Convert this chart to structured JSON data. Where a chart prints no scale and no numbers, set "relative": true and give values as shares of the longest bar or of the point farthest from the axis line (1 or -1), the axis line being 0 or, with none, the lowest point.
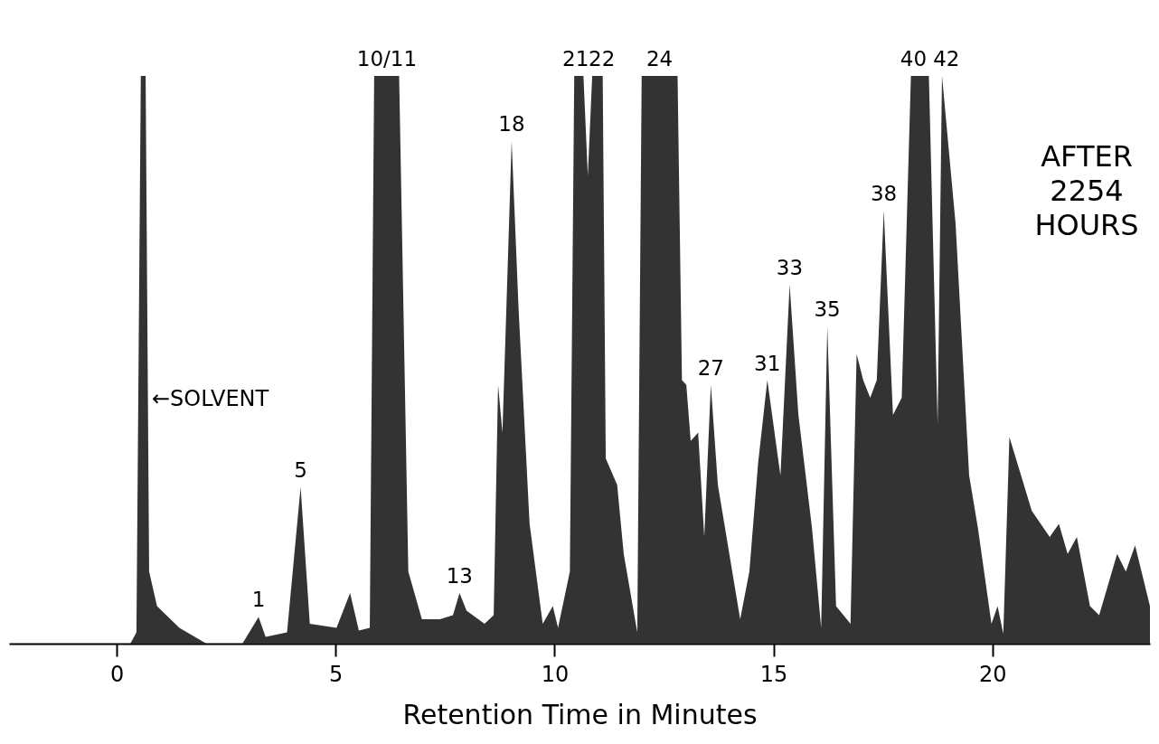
{
  "chart_data": {
    "type": "area",
    "relative": true,
    "xlabel": "Retention  Time  in  Minutes",
    "xlim": [
      -2.46,
      23.6
    ],
    "xticks": [
      0,
      5,
      10,
      15,
      20
    ],
    "grid": false,
    "x": [
      -2.46,
      0.31,
      0.45,
      0.55,
      0.66,
      0.74,
      0.92,
      1.43,
      2.05,
      2.87,
      3.24,
      3.4,
      3.89,
      4.2,
      4.41,
      5.02,
      5.33,
      5.53,
      5.78,
      5.88,
      6.45,
      6.66,
      6.97,
      7.38,
      7.68,
      7.83,
      7.99,
      8.4,
      8.61,
      8.71,
      8.81,
      9.02,
      9.18,
      9.43,
      9.73,
      9.96,
      10.08,
      10.35,
      10.45,
      10.66,
      10.76,
      10.86,
      11.1,
      11.17,
      11.43,
      11.58,
      11.89,
      11.99,
      12.81,
      12.91,
      13.01,
      13.11,
      13.28,
      13.42,
      13.57,
      13.73,
      14.24,
      14.45,
      14.65,
      14.86,
      15.16,
      15.37,
      15.57,
      15.88,
      16.09,
      16.23,
      16.43,
      16.76,
      16.9,
      17.05,
      17.21,
      17.36,
      17.52,
      17.73,
      17.93,
      18.14,
      18.55,
      18.75,
      18.85,
      19.16,
      19.47,
      19.67,
      19.98,
      20.12,
      20.25,
      20.39,
      20.9,
      21.31,
      21.52,
      21.72,
      21.93,
      22.23,
      22.44,
      22.85,
      23.05,
      23.26,
      23.6
    ],
    "series": [
      {
        "color": "#333333",
        "values": [
          0,
          0,
          0.02,
          1,
          1,
          0.127,
          0.066,
          0.028,
          0,
          0,
          0.047,
          0.012,
          0.02,
          0.276,
          0.035,
          0.028,
          0.089,
          0.023,
          0.028,
          1,
          1,
          0.127,
          0.043,
          0.043,
          0.05,
          0.089,
          0.058,
          0.035,
          0.05,
          0.456,
          0.372,
          0.885,
          0.587,
          0.211,
          0.035,
          0.066,
          0.028,
          0.127,
          1,
          1,
          0.824,
          1,
          1,
          0.326,
          0.28,
          0.158,
          0.02,
          1,
          1,
          0.464,
          0.456,
          0.357,
          0.372,
          0.188,
          0.456,
          0.28,
          0.043,
          0.127,
          0.318,
          0.464,
          0.296,
          0.632,
          0.403,
          0.204,
          0.028,
          0.559,
          0.066,
          0.035,
          0.51,
          0.464,
          0.433,
          0.464,
          0.763,
          0.403,
          0.433,
          1,
          1,
          0.387,
          1,
          0.74,
          0.296,
          0.204,
          0.035,
          0.066,
          0.017,
          0.364,
          0.234,
          0.188,
          0.211,
          0.158,
          0.188,
          0.066,
          0.05,
          0.158,
          0.127,
          0.173,
          0.066
        ]
      }
    ],
    "annotations": [
      "←SOLVENT",
      {
        "text": "1",
        "x": 3.24,
        "y": 0.047
      },
      {
        "text": "5",
        "x": 4.2,
        "y": 0.276
      },
      {
        "text": "10/11",
        "x": 6.17,
        "y": 1
      },
      {
        "text": "13",
        "x": 7.83,
        "y": 0.089
      },
      {
        "text": "18",
        "x": 9.02,
        "y": 0.885
      },
      {
        "text": "21",
        "x": 10.48,
        "y": 1
      },
      {
        "text": "22",
        "x": 11.08,
        "y": 1
      },
      {
        "text": "24",
        "x": 12.4,
        "y": 1
      },
      {
        "text": "27",
        "x": 13.57,
        "y": 0.456
      },
      {
        "text": "31",
        "x": 14.86,
        "y": 0.464
      },
      {
        "text": "33",
        "x": 15.37,
        "y": 0.632
      },
      {
        "text": "35",
        "x": 16.23,
        "y": 0.559
      },
      {
        "text": "38",
        "x": 17.52,
        "y": 0.763
      },
      {
        "text": "40",
        "x": 18.2,
        "y": 1
      },
      {
        "text": "42",
        "x": 18.95,
        "y": 1
      },
      "AFTER 2254 HOURS"
    ]
  }
}
